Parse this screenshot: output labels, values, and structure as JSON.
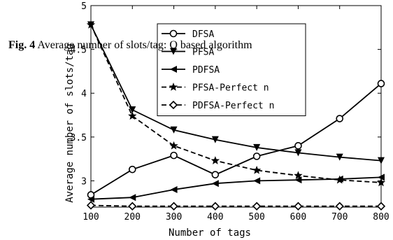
{
  "caption": {
    "label": "Fig. 4",
    "text": "Average number of slots/tag: Q based algorithm"
  },
  "chart_data": {
    "type": "line",
    "title": "",
    "xlabel": "Number of tags",
    "ylabel": "Average number of slots/tag",
    "xlim": [
      100,
      800
    ],
    "ylim": [
      2.7,
      5
    ],
    "xticks": [
      100,
      200,
      300,
      400,
      500,
      600,
      700,
      800
    ],
    "yticks": [
      3,
      3.5,
      4,
      4.5,
      5
    ],
    "ytick_labels": [
      "3",
      "3.5",
      "4",
      "4.5",
      "5"
    ],
    "grid": false,
    "legend_position": "top-center",
    "x": [
      100,
      200,
      300,
      400,
      500,
      600,
      700,
      800
    ],
    "series": [
      {
        "name": "DFSA",
        "marker": "circle",
        "dash": false,
        "values": [
          2.84,
          3.13,
          3.29,
          3.07,
          3.28,
          3.4,
          3.71,
          4.11
        ]
      },
      {
        "name": "PFSA",
        "marker": "triangle-down",
        "dash": false,
        "values": [
          4.78,
          3.81,
          3.58,
          3.47,
          3.38,
          3.32,
          3.27,
          3.23
        ]
      },
      {
        "name": "PDFSA",
        "marker": "triangle-left",
        "dash": false,
        "values": [
          2.79,
          2.81,
          2.9,
          2.97,
          3.0,
          3.01,
          3.02,
          3.04
        ]
      },
      {
        "name": "PFSA-Perfect n",
        "marker": "star",
        "dash": true,
        "values": [
          4.78,
          3.74,
          3.4,
          3.23,
          3.12,
          3.06,
          3.01,
          2.98
        ]
      },
      {
        "name": "PDFSA-Perfect n",
        "marker": "diamond",
        "dash": true,
        "values": [
          2.72,
          2.71,
          2.71,
          2.71,
          2.71,
          2.71,
          2.71,
          2.71
        ]
      }
    ]
  }
}
